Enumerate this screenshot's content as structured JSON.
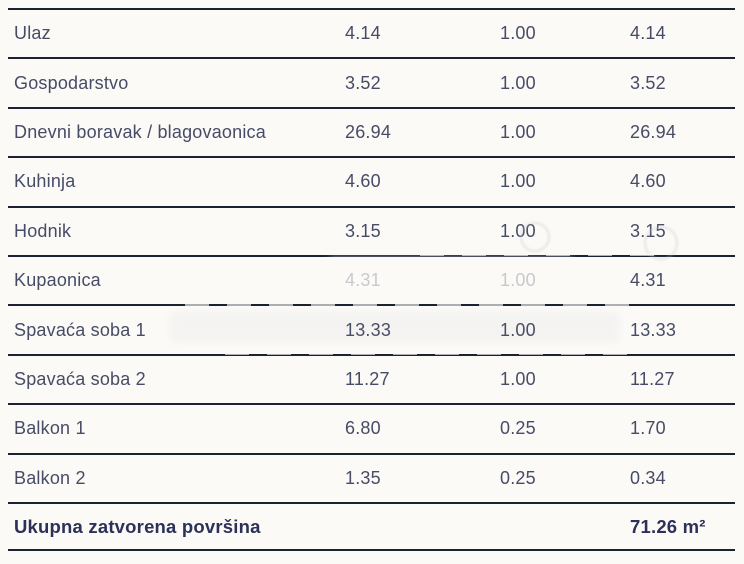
{
  "table": {
    "columns": [
      "room",
      "area_m2",
      "coefficient",
      "weighted_area_m2"
    ],
    "rows": [
      {
        "label": "Ulaz",
        "area": "4.14",
        "coef": "1.00",
        "total": "4.14"
      },
      {
        "label": "Gospodarstvo",
        "area": "3.52",
        "coef": "1.00",
        "total": "3.52"
      },
      {
        "label": "Dnevni boravak / blagovaonica",
        "area": "26.94",
        "coef": "1.00",
        "total": "26.94"
      },
      {
        "label": "Kuhinja",
        "area": "4.60",
        "coef": "1.00",
        "total": "4.60"
      },
      {
        "label": "Hodnik",
        "area": "3.15",
        "coef": "1.00",
        "total": "3.15"
      },
      {
        "label": "Kupaonica",
        "area": "4.31",
        "coef": "1.00",
        "total": "4.31"
      },
      {
        "label": "Spavaća soba 1",
        "area": "13.33",
        "coef": "1.00",
        "total": "13.33"
      },
      {
        "label": "Spavaća soba 2",
        "area": "11.27",
        "coef": "1.00",
        "total": "11.27"
      },
      {
        "label": "Balkon 1",
        "area": "6.80",
        "coef": "0.25",
        "total": "1.70"
      },
      {
        "label": "Balkon 2",
        "area": "1.35",
        "coef": "0.25",
        "total": "0.34"
      }
    ],
    "footer": {
      "label": "Ukupna zatvorena površina",
      "total": "71.26 m²"
    }
  },
  "colors": {
    "background": "#fbfaf7",
    "line": "#1d2233",
    "row_text": "#474c66",
    "footer_text": "#2b3158"
  }
}
